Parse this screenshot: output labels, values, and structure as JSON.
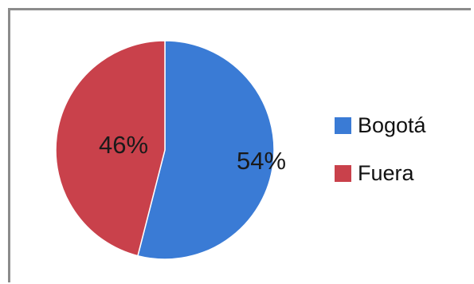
{
  "chart_data": {
    "type": "pie",
    "slices": [
      {
        "label": "Bogotá",
        "value": 54,
        "value_label": "54%",
        "color": "#3a7bd5"
      },
      {
        "label": "Fuera",
        "value": 46,
        "value_label": "46%",
        "color": "#c9414b"
      }
    ],
    "start": "12 o'clock",
    "direction": "clockwise",
    "legend_position": "right"
  }
}
